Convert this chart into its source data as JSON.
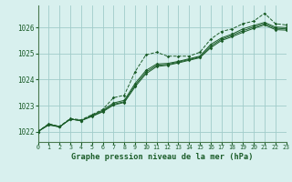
{
  "background_color": "#d8f0ee",
  "grid_color": "#a0ccca",
  "line_color": "#1a5c28",
  "spine_color": "#4a7a50",
  "xlabel": "Graphe pression niveau de la mer (hPa)",
  "xlim": [
    0,
    23
  ],
  "ylim": [
    1021.6,
    1026.85
  ],
  "yticks": [
    1022,
    1023,
    1024,
    1025,
    1026
  ],
  "xticks": [
    0,
    1,
    2,
    3,
    4,
    5,
    6,
    7,
    8,
    9,
    10,
    11,
    12,
    13,
    14,
    15,
    16,
    17,
    18,
    19,
    20,
    21,
    22,
    23
  ],
  "series": [
    [
      1022.0,
      1022.3,
      1022.2,
      1022.5,
      1022.45,
      1022.65,
      1022.85,
      1023.3,
      1023.4,
      1024.3,
      1024.95,
      1025.05,
      1024.9,
      1024.9,
      1024.9,
      1025.05,
      1025.55,
      1025.85,
      1025.95,
      1026.15,
      1026.25,
      1026.55,
      1026.15,
      1026.1
    ],
    [
      1022.0,
      1022.25,
      1022.18,
      1022.48,
      1022.42,
      1022.62,
      1022.82,
      1023.1,
      1023.2,
      1023.85,
      1024.35,
      1024.6,
      1024.62,
      1024.7,
      1024.8,
      1024.9,
      1025.35,
      1025.6,
      1025.75,
      1025.95,
      1026.08,
      1026.2,
      1026.02,
      1026.0
    ],
    [
      1022.0,
      1022.28,
      1022.18,
      1022.48,
      1022.42,
      1022.6,
      1022.78,
      1023.05,
      1023.15,
      1023.78,
      1024.28,
      1024.55,
      1024.58,
      1024.67,
      1024.77,
      1024.87,
      1025.28,
      1025.55,
      1025.7,
      1025.88,
      1026.02,
      1026.15,
      1025.97,
      1025.95
    ],
    [
      1022.0,
      1022.28,
      1022.18,
      1022.48,
      1022.42,
      1022.58,
      1022.76,
      1023.02,
      1023.12,
      1023.72,
      1024.22,
      1024.5,
      1024.55,
      1024.64,
      1024.74,
      1024.84,
      1025.22,
      1025.5,
      1025.65,
      1025.82,
      1025.97,
      1026.1,
      1025.92,
      1025.9
    ]
  ]
}
